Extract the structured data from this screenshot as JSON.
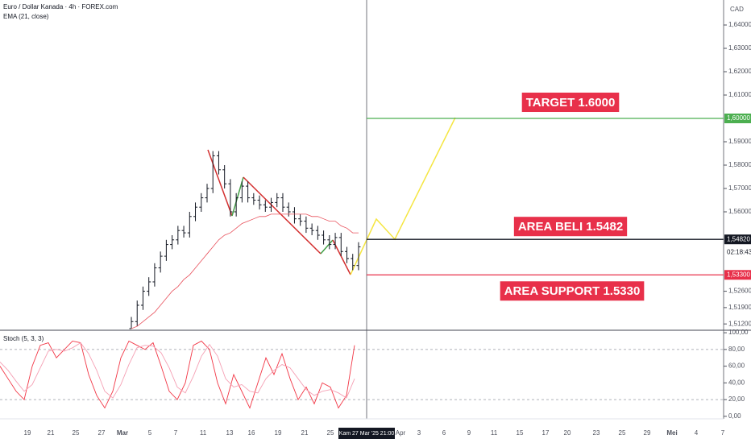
{
  "header": {
    "symbol": "Euro / Dollar Kanada · 4h · FOREX.com",
    "currency": "CAD",
    "countdown": "02:18:43"
  },
  "chart_data": [
    {
      "type": "ohlc",
      "ylim": [
        1.5093,
        1.6507
      ],
      "yticks": [
        {
          "value": 1.64,
          "label": "1,64000"
        },
        {
          "value": 1.63,
          "label": "1,63000"
        },
        {
          "value": 1.62,
          "label": "1,62000"
        },
        {
          "value": 1.61,
          "label": "1,61000"
        },
        {
          "value": 1.59,
          "label": "1,59000"
        },
        {
          "value": 1.58,
          "label": "1,58000"
        },
        {
          "value": 1.57,
          "label": "1,57000"
        },
        {
          "value": 1.56,
          "label": "1,56000"
        },
        {
          "value": 1.526,
          "label": "1,52600"
        },
        {
          "value": 1.519,
          "label": "1,51900"
        },
        {
          "value": 1.512,
          "label": "1,51200"
        }
      ],
      "color": "#131722",
      "open": [
        1.51,
        1.513,
        1.52,
        1.526,
        1.53,
        1.536,
        1.541,
        1.546,
        1.548,
        1.552,
        1.551,
        1.558,
        1.562,
        1.566,
        1.57,
        1.584,
        1.578,
        1.572,
        1.56,
        1.566,
        1.571,
        1.566,
        1.565,
        1.563,
        1.562,
        1.564,
        1.566,
        1.562,
        1.56,
        1.557,
        1.556,
        1.553,
        1.552,
        1.55,
        1.548,
        1.546,
        1.549,
        1.543,
        1.54,
        1.537
      ],
      "high": [
        1.515,
        1.522,
        1.528,
        1.532,
        1.538,
        1.543,
        1.548,
        1.55,
        1.554,
        1.554,
        1.56,
        1.564,
        1.568,
        1.572,
        1.586,
        1.586,
        1.58,
        1.574,
        1.568,
        1.573,
        1.573,
        1.568,
        1.567,
        1.565,
        1.566,
        1.568,
        1.568,
        1.564,
        1.562,
        1.559,
        1.558,
        1.555,
        1.554,
        1.552,
        1.55,
        1.551,
        1.551,
        1.545,
        1.542,
        1.547
      ],
      "low": [
        1.51,
        1.511,
        1.518,
        1.524,
        1.528,
        1.534,
        1.539,
        1.544,
        1.546,
        1.549,
        1.549,
        1.556,
        1.56,
        1.564,
        1.568,
        1.576,
        1.57,
        1.558,
        1.558,
        1.564,
        1.564,
        1.563,
        1.561,
        1.56,
        1.56,
        1.562,
        1.56,
        1.558,
        1.555,
        1.554,
        1.551,
        1.55,
        1.548,
        1.546,
        1.544,
        1.544,
        1.541,
        1.538,
        1.535,
        1.535
      ],
      "close": [
        1.513,
        1.52,
        1.526,
        1.53,
        1.536,
        1.541,
        1.546,
        1.548,
        1.552,
        1.551,
        1.558,
        1.562,
        1.566,
        1.57,
        1.584,
        1.578,
        1.572,
        1.56,
        1.566,
        1.571,
        1.566,
        1.565,
        1.563,
        1.562,
        1.564,
        1.566,
        1.562,
        1.56,
        1.557,
        1.556,
        1.553,
        1.552,
        1.55,
        1.548,
        1.546,
        1.549,
        1.543,
        1.54,
        1.537,
        1.545
      ],
      "series": [
        {
          "name": "EMA (21, close)",
          "color": "#e8505b",
          "values": [
            1.51,
            1.511,
            1.513,
            1.515,
            1.517,
            1.52,
            1.523,
            1.526,
            1.528,
            1.531,
            1.533,
            1.536,
            1.539,
            1.542,
            1.545,
            1.548,
            1.55,
            1.551,
            1.553,
            1.555,
            1.556,
            1.557,
            1.558,
            1.558,
            1.559,
            1.559,
            1.559,
            1.559,
            1.559,
            1.559,
            1.559,
            1.558,
            1.558,
            1.557,
            1.556,
            1.556,
            1.554,
            1.553,
            1.551,
            1.551
          ]
        }
      ],
      "levels": [
        {
          "label": "TARGET 1.6000",
          "value": 1.6,
          "value_label": "1,60000",
          "color": "#4caf50"
        },
        {
          "label": "AREA BELI 1.5482",
          "value": 1.5482,
          "value_label": "1,54820",
          "color": "#131722"
        },
        {
          "label": "AREA SUPPORT 1.5330",
          "value": 1.533,
          "value_label": "1,53300",
          "color": "#e8304a"
        }
      ]
    },
    {
      "type": "line",
      "title": "Stoch (5, 3, 3)",
      "ylim": [
        -3,
        103
      ],
      "yticks": [
        {
          "value": 100,
          "label": "100,00"
        },
        {
          "value": 80,
          "label": "80,00"
        },
        {
          "value": 60,
          "label": "60,00"
        },
        {
          "value": 40,
          "label": "40,00"
        },
        {
          "value": 20,
          "label": "20,00"
        },
        {
          "value": 0,
          "label": "0,00"
        }
      ],
      "bands": [
        80,
        20
      ],
      "series": [
        {
          "color": "#f23645",
          "values": [
            60,
            45,
            30,
            20,
            60,
            85,
            88,
            70,
            80,
            90,
            88,
            50,
            25,
            10,
            30,
            70,
            90,
            85,
            80,
            88,
            60,
            30,
            20,
            40,
            85,
            90,
            80,
            40,
            15,
            50,
            30,
            10,
            40,
            70,
            50,
            75,
            45,
            20,
            35,
            15,
            40,
            35,
            10,
            25,
            85
          ]
        },
        {
          "color": "#f5a0b4",
          "values": [
            65,
            55,
            42,
            30,
            38,
            58,
            78,
            80,
            78,
            82,
            88,
            75,
            55,
            30,
            22,
            38,
            62,
            82,
            85,
            84,
            76,
            58,
            35,
            28,
            48,
            72,
            86,
            72,
            45,
            35,
            38,
            30,
            28,
            45,
            55,
            62,
            58,
            45,
            32,
            25,
            30,
            32,
            28,
            22,
            45
          ]
        }
      ]
    }
  ],
  "x_labels": [
    "19",
    "21",
    "25",
    "27",
    "Mar",
    "5",
    "7",
    "11",
    "13",
    "16",
    "19",
    "21",
    "25",
    "Apr",
    "3",
    "6",
    "9",
    "11",
    "15",
    "17",
    "20",
    "23",
    "25",
    "29",
    "Mei",
    "4",
    "7"
  ],
  "crosshair_label": "Kam 27 Mar '25   21:00"
}
